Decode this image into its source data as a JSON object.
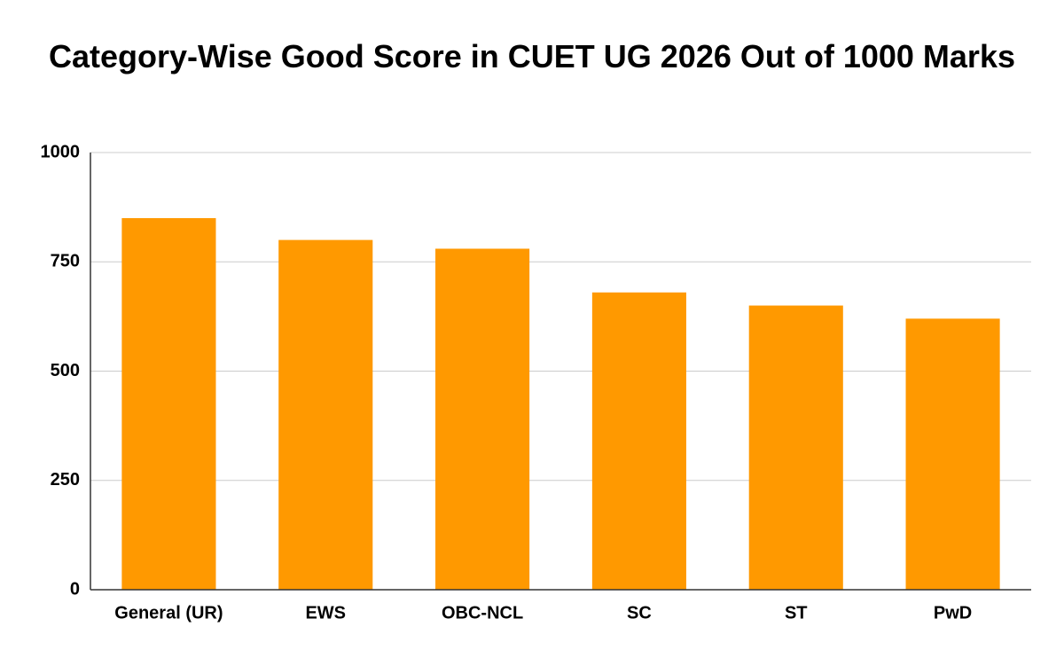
{
  "chart_data": {
    "type": "bar",
    "title": "Category-Wise Good Score in CUET UG 2026 Out of 1000 Marks",
    "categories": [
      "General (UR)",
      "EWS",
      "OBC-NCL",
      "SC",
      "ST",
      "PwD"
    ],
    "values": [
      850,
      800,
      780,
      680,
      650,
      620
    ],
    "color": "#ff9900",
    "ylim": [
      0,
      1000
    ],
    "yticks": [
      0,
      250,
      500,
      750,
      1000
    ],
    "grid": true
  }
}
